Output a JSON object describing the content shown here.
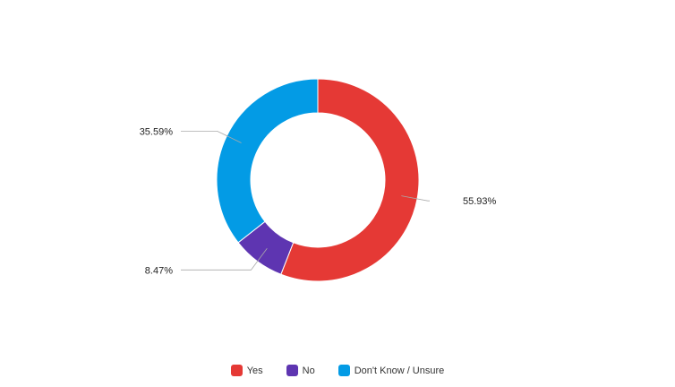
{
  "chart_data": {
    "type": "pie",
    "variant": "donut",
    "title": "",
    "series": [
      {
        "name": "Yes",
        "value": 55.93,
        "label": "55.93%",
        "color": "#e53935"
      },
      {
        "name": "No",
        "value": 8.47,
        "label": "8.47%",
        "color": "#5e35b1"
      },
      {
        "name": "Don't Know / Unsure",
        "value": 35.59,
        "label": "35.59%",
        "color": "#039be5"
      }
    ],
    "legend": {
      "position": "bottom-center"
    },
    "data_labels": "outside"
  }
}
